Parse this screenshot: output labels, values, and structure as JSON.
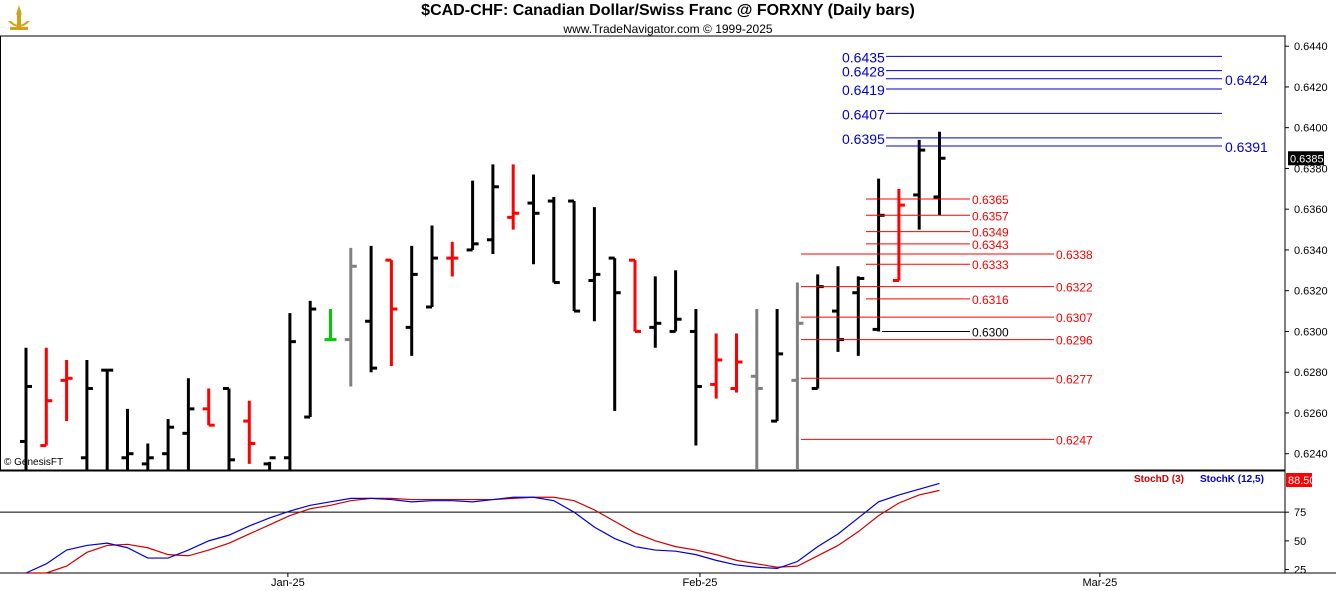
{
  "header": {
    "title": "$CAD-CHF:  Canadian Dollar/Swiss Franc @ FORXNY  (Daily bars)",
    "subtitle": "www.TradeNavigator.com © 1999-2025",
    "watermark": "© GenesisFT"
  },
  "colors": {
    "up": "#000000",
    "down": "#ff0000",
    "neutral": "#808080",
    "highlight": "#00cc00",
    "fib_blue": "#0000cc",
    "fib_red": "#ff0000",
    "stoch_d": "#cc0000",
    "stoch_k": "#0000cc"
  },
  "chart_data": [
    {
      "type": "ohlc",
      "title": "$CAD-CHF:  Canadian Dollar/Swiss Franc @ FORXNY  (Daily bars)",
      "ylim": [
        0.6232,
        0.6445
      ],
      "yticks": [
        "0.6240",
        "0.6260",
        "0.6280",
        "0.6300",
        "0.6320",
        "0.6340",
        "0.6360",
        "0.6380",
        "0.6400",
        "0.6420",
        "0.6440"
      ],
      "xticks": [
        {
          "label": "Jan-25",
          "bar": 12.9
        },
        {
          "label": "Feb-25",
          "bar": 33.2
        },
        {
          "label": "Mar-25",
          "bar": 52.9
        }
      ],
      "last_price": "0.6385",
      "bars": [
        {
          "o": 0.6246,
          "h": 0.6292,
          "l": 0.623,
          "c": 0.6273,
          "color": "up"
        },
        {
          "o": 0.6244,
          "h": 0.6292,
          "l": 0.6244,
          "c": 0.6266,
          "color": "down"
        },
        {
          "o": 0.6276,
          "h": 0.6286,
          "l": 0.6256,
          "c": 0.6277,
          "color": "down"
        },
        {
          "o": 0.6238,
          "h": 0.6286,
          "l": 0.6232,
          "c": 0.6272,
          "color": "up"
        },
        {
          "o": 0.6281,
          "h": 0.6281,
          "l": 0.6232,
          "c": 0.6281,
          "color": "up"
        },
        {
          "o": 0.6238,
          "h": 0.6262,
          "l": 0.623,
          "c": 0.624,
          "color": "up"
        },
        {
          "o": 0.6235,
          "h": 0.6245,
          "l": 0.6232,
          "c": 0.6238,
          "color": "up"
        },
        {
          "o": 0.624,
          "h": 0.6257,
          "l": 0.6232,
          "c": 0.6253,
          "color": "up"
        },
        {
          "o": 0.625,
          "h": 0.6277,
          "l": 0.623,
          "c": 0.6262,
          "color": "up"
        },
        {
          "o": 0.6262,
          "h": 0.6272,
          "l": 0.6254,
          "c": 0.6254,
          "color": "down"
        },
        {
          "o": 0.6272,
          "h": 0.6272,
          "l": 0.6232,
          "c": 0.6237,
          "color": "up"
        },
        {
          "o": 0.6256,
          "h": 0.6266,
          "l": 0.6235,
          "c": 0.6245,
          "color": "down"
        },
        {
          "o": 0.6235,
          "h": 0.6236,
          "l": 0.6232,
          "c": 0.6238,
          "color": "up"
        },
        {
          "o": 0.6238,
          "h": 0.6309,
          "l": 0.6232,
          "c": 0.6295,
          "color": "up"
        },
        {
          "o": 0.6258,
          "h": 0.6315,
          "l": 0.6258,
          "c": 0.6311,
          "color": "up"
        },
        {
          "o": 0.6296,
          "h": 0.6311,
          "l": 0.6296,
          "c": 0.6296,
          "color": "highlight"
        },
        {
          "o": 0.6296,
          "h": 0.6341,
          "l": 0.6273,
          "c": 0.6332,
          "color": "neutral"
        },
        {
          "o": 0.6305,
          "h": 0.6342,
          "l": 0.628,
          "c": 0.6282,
          "color": "up"
        },
        {
          "o": 0.6335,
          "h": 0.6335,
          "l": 0.6283,
          "c": 0.6311,
          "color": "down"
        },
        {
          "o": 0.6302,
          "h": 0.6342,
          "l": 0.6288,
          "c": 0.6328,
          "color": "up"
        },
        {
          "o": 0.6312,
          "h": 0.6352,
          "l": 0.6312,
          "c": 0.6336,
          "color": "up"
        },
        {
          "o": 0.6336,
          "h": 0.6344,
          "l": 0.6327,
          "c": 0.6336,
          "color": "down"
        },
        {
          "o": 0.634,
          "h": 0.6374,
          "l": 0.634,
          "c": 0.6343,
          "color": "up"
        },
        {
          "o": 0.6345,
          "h": 0.6382,
          "l": 0.6338,
          "c": 0.6371,
          "color": "up"
        },
        {
          "o": 0.6356,
          "h": 0.6382,
          "l": 0.635,
          "c": 0.6358,
          "color": "down"
        },
        {
          "o": 0.6363,
          "h": 0.6377,
          "l": 0.6333,
          "c": 0.6358,
          "color": "up"
        },
        {
          "o": 0.6364,
          "h": 0.6366,
          "l": 0.6324,
          "c": 0.6324,
          "color": "up"
        },
        {
          "o": 0.6364,
          "h": 0.6364,
          "l": 0.631,
          "c": 0.631,
          "color": "up"
        },
        {
          "o": 0.6325,
          "h": 0.6361,
          "l": 0.6305,
          "c": 0.6328,
          "color": "up"
        },
        {
          "o": 0.6336,
          "h": 0.6336,
          "l": 0.6261,
          "c": 0.6319,
          "color": "up"
        },
        {
          "o": 0.6335,
          "h": 0.6335,
          "l": 0.63,
          "c": 0.63,
          "color": "down"
        },
        {
          "o": 0.6302,
          "h": 0.6327,
          "l": 0.6292,
          "c": 0.6304,
          "color": "up"
        },
        {
          "o": 0.63,
          "h": 0.633,
          "l": 0.63,
          "c": 0.6306,
          "color": "up"
        },
        {
          "o": 0.63,
          "h": 0.6311,
          "l": 0.6244,
          "c": 0.6273,
          "color": "up"
        },
        {
          "o": 0.6274,
          "h": 0.6299,
          "l": 0.6267,
          "c": 0.6286,
          "color": "down"
        },
        {
          "o": 0.6272,
          "h": 0.6299,
          "l": 0.627,
          "c": 0.6285,
          "color": "down"
        },
        {
          "o": 0.6278,
          "h": 0.6311,
          "l": 0.6232,
          "c": 0.6272,
          "color": "neutral"
        },
        {
          "o": 0.6256,
          "h": 0.6311,
          "l": 0.6256,
          "c": 0.6289,
          "color": "up"
        },
        {
          "o": 0.6276,
          "h": 0.6324,
          "l": 0.6232,
          "c": 0.6304,
          "color": "neutral"
        },
        {
          "o": 0.6272,
          "h": 0.6328,
          "l": 0.6272,
          "c": 0.6322,
          "color": "up"
        },
        {
          "o": 0.631,
          "h": 0.6332,
          "l": 0.629,
          "c": 0.6296,
          "color": "up"
        },
        {
          "o": 0.6319,
          "h": 0.6327,
          "l": 0.6288,
          "c": 0.6326,
          "color": "up"
        },
        {
          "o": 0.6301,
          "h": 0.6375,
          "l": 0.63,
          "c": 0.6357,
          "color": "up"
        },
        {
          "o": 0.6325,
          "h": 0.637,
          "l": 0.6325,
          "c": 0.6362,
          "color": "down"
        },
        {
          "o": 0.6367,
          "h": 0.6394,
          "l": 0.635,
          "c": 0.6389,
          "color": "up"
        },
        {
          "o": 0.6366,
          "h": 0.6398,
          "l": 0.6357,
          "c": 0.6385,
          "color": "up"
        }
      ],
      "fib_blue": [
        {
          "value": 0.6435,
          "label": "0.6435"
        },
        {
          "value": 0.6428,
          "label": "0.6428"
        },
        {
          "value": 0.6419,
          "label": "0.6419"
        },
        {
          "value": 0.6407,
          "label": "0.6407"
        },
        {
          "value": 0.6395,
          "label": "0.6395"
        }
      ],
      "fib_blue_right": [
        {
          "value": 0.6424,
          "label": "0.6424"
        },
        {
          "value": 0.6391,
          "label": "0.6391"
        }
      ],
      "fib_red_short": [
        {
          "value": 0.6365,
          "label": "0.6365"
        },
        {
          "value": 0.6357,
          "label": "0.6357"
        },
        {
          "value": 0.6349,
          "label": "0.6349"
        },
        {
          "value": 0.6343,
          "label": "0.6343"
        },
        {
          "value": 0.6333,
          "label": "0.6333"
        },
        {
          "value": 0.6316,
          "label": "0.6316"
        }
      ],
      "fib_black": {
        "value": 0.63,
        "label": "0.6300"
      },
      "fib_red_long": [
        {
          "value": 0.6338,
          "label": "0.6338"
        },
        {
          "value": 0.6322,
          "label": "0.6322"
        },
        {
          "value": 0.6307,
          "label": "0.6307"
        },
        {
          "value": 0.6296,
          "label": "0.6296"
        },
        {
          "value": 0.6277,
          "label": "0.6277"
        },
        {
          "value": 0.6247,
          "label": "0.6247"
        }
      ]
    },
    {
      "type": "line",
      "title": "",
      "ylim": [
        22,
        110
      ],
      "yticks": [
        "25",
        "50",
        "75"
      ],
      "reference_line": 75,
      "last_value": "88.50",
      "series": [
        {
          "name": "StochD (3)",
          "color": "#cc0000",
          "values": [
            5,
            12,
            28,
            40,
            46,
            47,
            44,
            38,
            37,
            42,
            48,
            56,
            64,
            72,
            78,
            81,
            85,
            87,
            87,
            86,
            86,
            86,
            86,
            86,
            87,
            88,
            88,
            85,
            77,
            67,
            57,
            50,
            45,
            42,
            38,
            33,
            30,
            27,
            28,
            37,
            46,
            58,
            72,
            83,
            90,
            94
          ]
        },
        {
          "name": "StochK (12,5)",
          "color": "#0000cc",
          "values": [
            10,
            30,
            42,
            46,
            48,
            44,
            35,
            35,
            42,
            50,
            55,
            63,
            70,
            76,
            81,
            84,
            87,
            87,
            86,
            84,
            85,
            85,
            84,
            86,
            88,
            88,
            85,
            75,
            62,
            52,
            45,
            42,
            41,
            38,
            33,
            29,
            27,
            26,
            32,
            45,
            56,
            70,
            84,
            90,
            95,
            100
          ]
        }
      ]
    }
  ]
}
